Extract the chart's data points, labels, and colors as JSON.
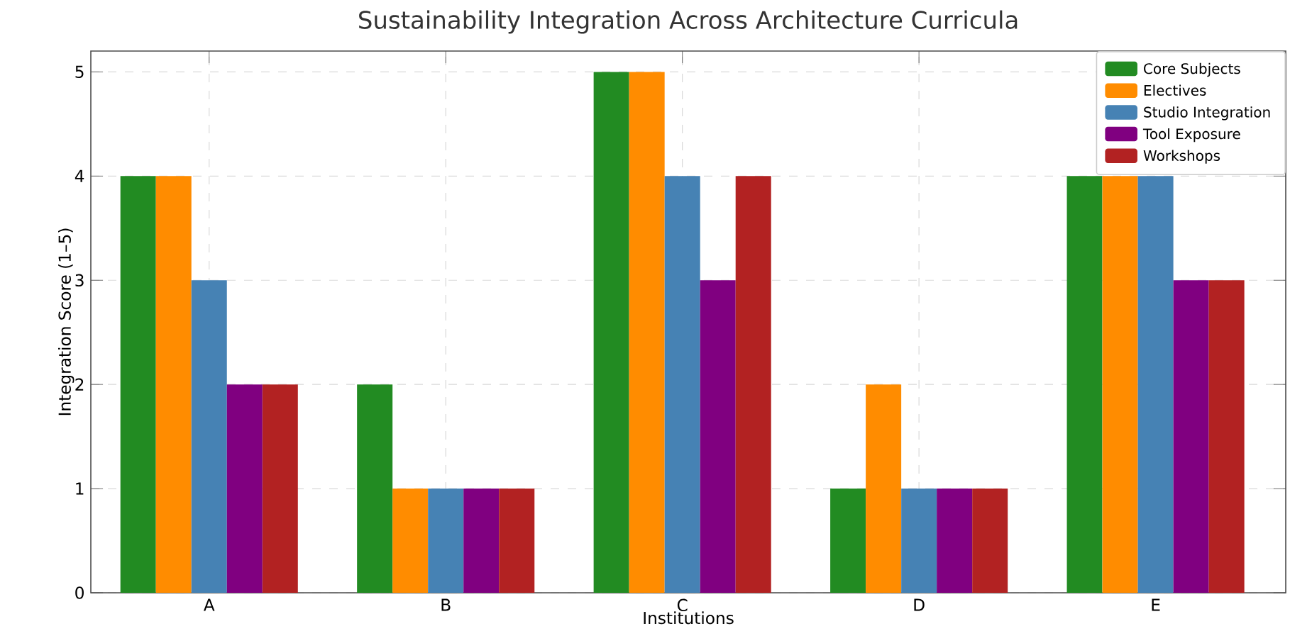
{
  "chart_data": {
    "type": "bar",
    "title": "Sustainability Integration Across Architecture Curricula",
    "xlabel": "Institutions",
    "ylabel": "Integration Score (1–5)",
    "categories": [
      "A",
      "B",
      "C",
      "D",
      "E"
    ],
    "series": [
      {
        "name": "Core Subjects",
        "color": "#228b22",
        "values": [
          4,
          2,
          5,
          1,
          4
        ]
      },
      {
        "name": "Electives",
        "color": "#ff8c00",
        "values": [
          4,
          1,
          5,
          2,
          4
        ]
      },
      {
        "name": "Studio Integration",
        "color": "#4682b4",
        "values": [
          3,
          1,
          4,
          1,
          4
        ]
      },
      {
        "name": "Tool Exposure",
        "color": "#800080",
        "values": [
          2,
          1,
          3,
          1,
          3
        ]
      },
      {
        "name": "Workshops",
        "color": "#b22222",
        "values": [
          2,
          1,
          4,
          1,
          3
        ]
      }
    ],
    "ylim": [
      0,
      5.2
    ],
    "yticks": [
      0,
      1,
      2,
      3,
      4,
      5
    ],
    "grid": true,
    "legend": "top right"
  }
}
